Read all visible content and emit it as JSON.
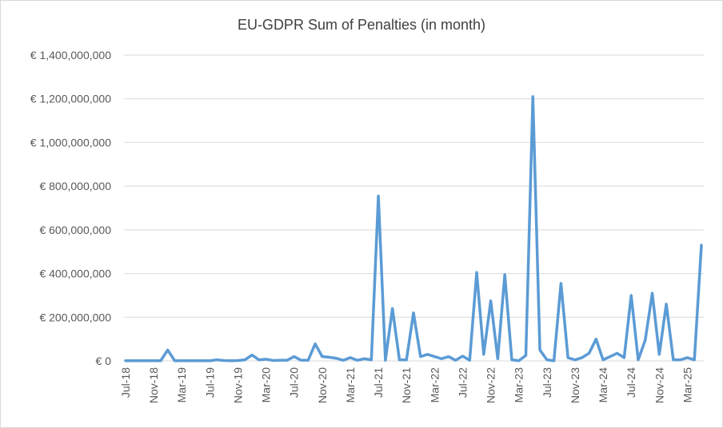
{
  "chart_data": {
    "type": "line",
    "title": "EU-GDPR Sum of Penalties (in month)",
    "categories": [
      "Jul-18",
      null,
      null,
      null,
      "Nov-18",
      null,
      null,
      null,
      "Mar-19",
      null,
      null,
      null,
      "Jul-19",
      null,
      null,
      null,
      "Nov-19",
      null,
      null,
      null,
      "Mar-20",
      null,
      null,
      null,
      "Jul-20",
      null,
      null,
      null,
      "Nov-20",
      null,
      null,
      null,
      "Mar-21",
      null,
      null,
      null,
      "Jul-21",
      null,
      null,
      null,
      "Nov-21",
      null,
      null,
      null,
      "Mar-22",
      null,
      null,
      null,
      "Jul-22",
      null,
      null,
      null,
      "Nov-22",
      null,
      null,
      null,
      "Mar-23",
      null,
      null,
      null,
      "Jul-23",
      null,
      null,
      null,
      "Nov-23",
      null,
      null,
      null,
      "Mar-24",
      null,
      null,
      null,
      "Jul-24",
      null,
      null,
      null,
      "Nov-24",
      null,
      null,
      null,
      "Mar-25",
      null,
      null
    ],
    "series": [
      {
        "name": "Sum of Penalties",
        "color": "#5b9bd5",
        "values": [
          1000000,
          1000000,
          1000000,
          1000000,
          1000000,
          1000000,
          50000000,
          1000000,
          1000000,
          1000000,
          1000000,
          1000000,
          1000000,
          5000000,
          2000000,
          1000000,
          2000000,
          5000000,
          27000000,
          5000000,
          8000000,
          2000000,
          3000000,
          3000000,
          20000000,
          3000000,
          3000000,
          78000000,
          20000000,
          17000000,
          12000000,
          3000000,
          15000000,
          3000000,
          10000000,
          5000000,
          755000000,
          3000000,
          240000000,
          5000000,
          5000000,
          220000000,
          20000000,
          30000000,
          20000000,
          10000000,
          20000000,
          3000000,
          22000000,
          3000000,
          405000000,
          30000000,
          275000000,
          10000000,
          395000000,
          5000000,
          1000000,
          25000000,
          1210000000,
          50000000,
          5000000,
          1000000,
          355000000,
          15000000,
          5000000,
          15000000,
          35000000,
          100000000,
          5000000,
          20000000,
          35000000,
          15000000,
          300000000,
          5000000,
          95000000,
          310000000,
          30000000,
          260000000,
          5000000,
          5000000,
          15000000,
          5000000,
          530000000
        ]
      }
    ],
    "ylim": [
      0,
      1400000000
    ],
    "yticks": [
      {
        "value": 0,
        "label": "€ 0"
      },
      {
        "value": 200000000,
        "label": "€ 200,000,000"
      },
      {
        "value": 400000000,
        "label": "€ 400,000,000"
      },
      {
        "value": 600000000,
        "label": "€ 600,000,000"
      },
      {
        "value": 800000000,
        "label": "€ 800,000,000"
      },
      {
        "value": 1000000000,
        "label": "€ 1,000,000,000"
      },
      {
        "value": 1200000000,
        "label": "€ 1,200,000,000"
      },
      {
        "value": 1400000000,
        "label": "€ 1,400,000,000"
      }
    ],
    "grid": true
  }
}
